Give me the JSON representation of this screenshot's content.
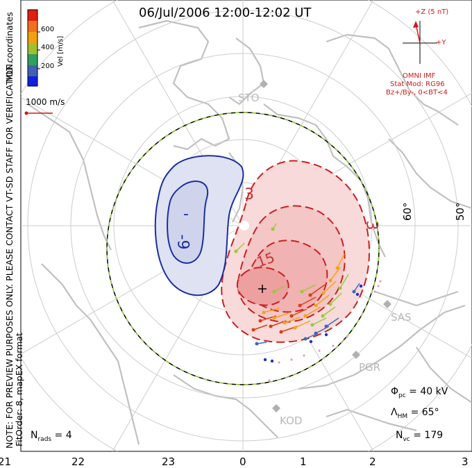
{
  "title": "06/Jul/2006 12:00-12:02 UT",
  "notes": {
    "coords": "MLT coordinates",
    "preview": "NOTE: FOR PREVIEW PURPOSES ONLY. PLEASE CONTACT VT-SD STAFF FOR VERIFICATION.",
    "fit": "FitOrder: 8, mapEX format"
  },
  "velocity_scale": {
    "label": "Vel [m/s]",
    "ticks": [
      "600",
      "400",
      "200"
    ],
    "colors": [
      "#e02010",
      "#f07020",
      "#f0a010",
      "#a0c030",
      "#30a060",
      "#4060b0",
      "#1020e0"
    ],
    "ref_vector": "1000 m/s"
  },
  "imf": {
    "z_label": "+Z (5 nT)",
    "y_label": "+Y",
    "source": "OMNI IMF",
    "model": "Stat Mod: RG96",
    "condition": "Bz+/By-, 0<BT<4"
  },
  "stats": {
    "phi_pc": "40 kV",
    "lambda_hm": "65°",
    "n_vc": "179",
    "n_rads": "4"
  },
  "mlt_labels": [
    "21",
    "22",
    "23",
    "0",
    "1",
    "2",
    "3"
  ],
  "lat_labels": [
    "60°",
    "50°"
  ],
  "stations": [
    "STO",
    "SAS",
    "PGR",
    "KOD"
  ],
  "contours": {
    "positive": [
      "3",
      "3",
      "15"
    ],
    "negative": [
      "-9",
      "-"
    ]
  },
  "colors": {
    "positive_fill": "#f6d2d2",
    "negative_fill": "#dcdff0",
    "positive_line": "#c82020",
    "negative_line": "#1a2fa0",
    "grid": "#c8c8c8",
    "coast": "#bfbfbf",
    "boundary_dash": "#9ad040"
  }
}
